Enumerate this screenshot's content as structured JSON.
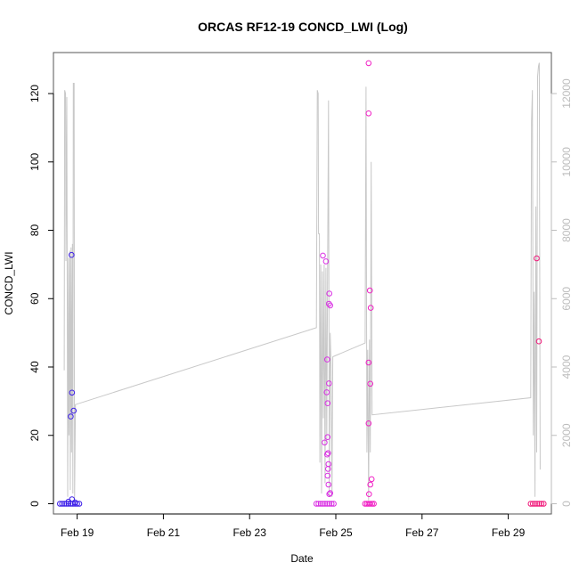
{
  "chart_data": {
    "type": "scatter",
    "title": "ORCAS RF12-19 CONCD_LWI (Log)",
    "xlabel": "Date",
    "ylabel": "CONCD_LWI",
    "x_ticks": [
      "Feb 19",
      "Feb 21",
      "Feb 23",
      "Feb 25",
      "Feb 27",
      "Feb 29"
    ],
    "x_tick_days": [
      19,
      21,
      23,
      25,
      27,
      29
    ],
    "xlim_days": [
      18.45,
      30.0
    ],
    "y_ticks": [
      0,
      20,
      40,
      60,
      80,
      100,
      120
    ],
    "ylim": [
      -3,
      132
    ],
    "y2_ticks": [
      0,
      2000,
      4000,
      6000,
      8000,
      10000,
      12000
    ],
    "y2lim": [
      -300,
      13200
    ],
    "colors": {
      "line": "#c8c8c8",
      "frame": "#555555",
      "axis2": "#bdbdbd"
    },
    "series": [
      {
        "color": "#3d1fe8",
        "points": [
          [
            18.87,
            72.8
          ],
          [
            18.88,
            32.5
          ],
          [
            18.85,
            25.5
          ],
          [
            18.92,
            27.2
          ],
          [
            18.88,
            1.3
          ],
          [
            18.8,
            0.6
          ],
          [
            18.95,
            0.4
          ],
          [
            18.6,
            0
          ],
          [
            18.65,
            0
          ],
          [
            18.7,
            0
          ],
          [
            18.75,
            0
          ],
          [
            18.8,
            0
          ],
          [
            18.85,
            0
          ],
          [
            18.9,
            0
          ],
          [
            18.95,
            0
          ],
          [
            19.0,
            0
          ],
          [
            19.05,
            0
          ]
        ]
      },
      {
        "color": "#d92fe3",
        "points": [
          [
            24.7,
            72.6
          ],
          [
            24.77,
            70.9
          ],
          [
            24.85,
            61.5
          ],
          [
            24.84,
            58.5
          ],
          [
            24.87,
            58.0
          ],
          [
            24.8,
            42.2
          ],
          [
            24.84,
            35.2
          ],
          [
            24.79,
            32.6
          ],
          [
            24.81,
            29.4
          ],
          [
            24.81,
            19.5
          ],
          [
            24.74,
            17.9
          ],
          [
            24.82,
            14.8
          ],
          [
            24.8,
            14.4
          ],
          [
            24.83,
            11.6
          ],
          [
            24.82,
            10.2
          ],
          [
            24.81,
            8.2
          ],
          [
            24.83,
            5.6
          ],
          [
            24.87,
            3.1
          ],
          [
            24.85,
            2.8
          ],
          [
            24.55,
            0
          ],
          [
            24.6,
            0
          ],
          [
            24.65,
            0
          ],
          [
            24.7,
            0
          ],
          [
            24.75,
            0
          ],
          [
            24.8,
            0
          ],
          [
            24.85,
            0
          ],
          [
            24.9,
            0
          ],
          [
            24.95,
            0
          ]
        ]
      },
      {
        "color": "#f01ec4",
        "points": [
          [
            25.76,
            128.9
          ],
          [
            25.76,
            114.2
          ],
          [
            25.79,
            62.4
          ],
          [
            25.81,
            57.3
          ],
          [
            25.76,
            41.3
          ],
          [
            25.8,
            35.1
          ],
          [
            25.76,
            23.5
          ],
          [
            25.83,
            7.2
          ],
          [
            25.8,
            5.6
          ],
          [
            25.77,
            2.8
          ],
          [
            25.68,
            0
          ],
          [
            25.72,
            0
          ],
          [
            25.76,
            0
          ],
          [
            25.8,
            0
          ],
          [
            25.84,
            0
          ],
          [
            25.88,
            0
          ]
        ]
      },
      {
        "color": "#f0197a",
        "points": [
          [
            29.66,
            71.8
          ],
          [
            29.71,
            47.5
          ],
          [
            29.52,
            0
          ],
          [
            29.57,
            0
          ],
          [
            29.62,
            0
          ],
          [
            29.67,
            0
          ],
          [
            29.72,
            0
          ],
          [
            29.77,
            0
          ],
          [
            29.82,
            0
          ]
        ]
      }
    ],
    "secondary_line": {
      "axis": "right",
      "description_values_in_y2_units": true,
      "points": [
        [
          18.7,
          3900
        ],
        [
          18.71,
          12100
        ],
        [
          18.73,
          12000
        ],
        [
          18.74,
          7100
        ],
        [
          18.76,
          11900
        ],
        [
          18.77,
          6000
        ],
        [
          18.78,
          200
        ],
        [
          18.8,
          7200
        ],
        [
          18.81,
          2000
        ],
        [
          18.83,
          7400
        ],
        [
          18.84,
          400
        ],
        [
          18.86,
          7500
        ],
        [
          18.87,
          1500
        ],
        [
          18.89,
          7600
        ],
        [
          18.9,
          300
        ],
        [
          18.91,
          12300
        ],
        [
          18.93,
          12300
        ],
        [
          18.94,
          100
        ],
        [
          18.96,
          2900
        ],
        [
          24.55,
          5150
        ],
        [
          24.57,
          12100
        ],
        [
          24.59,
          12000
        ],
        [
          24.6,
          7900
        ],
        [
          24.62,
          7900
        ],
        [
          24.63,
          1200
        ],
        [
          24.65,
          7000
        ],
        [
          24.67,
          300
        ],
        [
          24.69,
          6800
        ],
        [
          24.71,
          2500
        ],
        [
          24.73,
          7000
        ],
        [
          24.75,
          600
        ],
        [
          24.77,
          6900
        ],
        [
          24.79,
          1800
        ],
        [
          24.81,
          7000
        ],
        [
          24.83,
          11800
        ],
        [
          24.85,
          200
        ],
        [
          24.87,
          5000
        ],
        [
          24.89,
          4000
        ],
        [
          24.91,
          200
        ],
        [
          24.93,
          4300
        ],
        [
          25.68,
          4700
        ],
        [
          25.7,
          12200
        ],
        [
          25.72,
          1500
        ],
        [
          25.74,
          4500
        ],
        [
          25.76,
          100
        ],
        [
          25.78,
          4800
        ],
        [
          25.8,
          1500
        ],
        [
          25.82,
          10000
        ],
        [
          25.84,
          2600
        ],
        [
          29.52,
          3100
        ],
        [
          29.54,
          11200
        ],
        [
          29.56,
          12100
        ],
        [
          29.58,
          2000
        ],
        [
          29.6,
          6200
        ],
        [
          29.62,
          200
        ],
        [
          29.64,
          8700
        ],
        [
          29.66,
          1500
        ],
        [
          29.68,
          12500
        ],
        [
          29.7,
          12800
        ],
        [
          29.72,
          12900
        ],
        [
          29.74,
          1000
        ]
      ]
    }
  }
}
